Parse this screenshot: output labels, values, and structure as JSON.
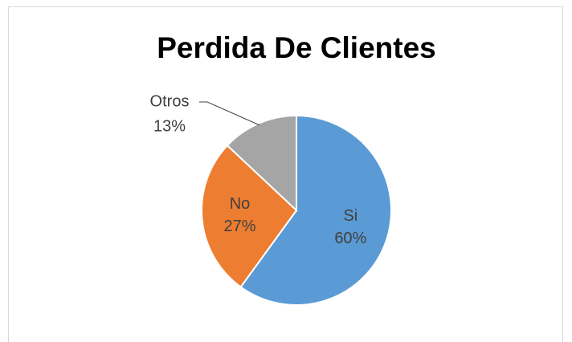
{
  "chart_data": {
    "type": "pie",
    "title": "Perdida De Clientes",
    "categories": [
      "Si",
      "No",
      "Otros"
    ],
    "values": [
      60,
      27,
      13
    ],
    "value_labels": [
      "60%",
      "27%",
      "13%"
    ],
    "colors": [
      "#5b9bd5",
      "#ed7d31",
      "#a5a5a5"
    ]
  }
}
